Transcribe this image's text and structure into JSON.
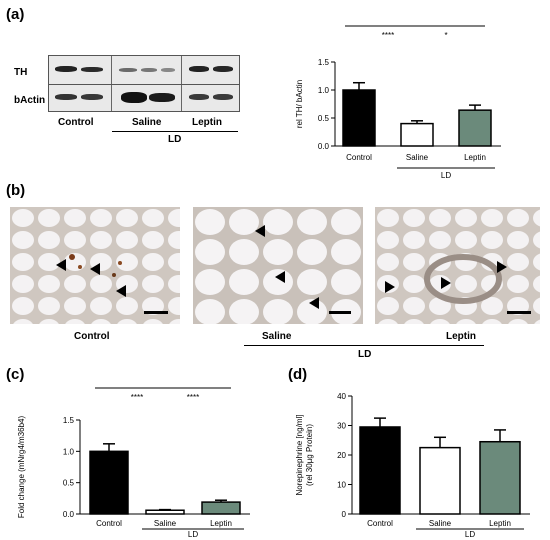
{
  "panels": {
    "a": "(a)",
    "b": "(b)",
    "c": "(c)",
    "d": "(d)"
  },
  "blot": {
    "rows": [
      "TH",
      "bActin"
    ],
    "columns": [
      "Control",
      "Saline",
      "Leptin"
    ],
    "group_label": "LD"
  },
  "micrographs": {
    "labels": [
      "Control",
      "Saline",
      "Leptin"
    ],
    "group_label": "LD"
  },
  "chart_data": [
    {
      "id": "a",
      "type": "bar",
      "categories": [
        "Control",
        "Saline",
        "Leptin"
      ],
      "values": [
        1.0,
        0.4,
        0.64
      ],
      "errors": [
        0.13,
        0.05,
        0.09
      ],
      "ylabel": "rel TH/ bActin",
      "ylim": [
        0,
        1.5
      ],
      "yticks": [
        "0.0",
        "0.5",
        "1.0",
        "1.5"
      ],
      "group_label": "LD",
      "bar_colors": [
        "#000000",
        "#ffffff",
        "#6b8a7b"
      ],
      "significance": [
        {
          "from": 0,
          "to": 1,
          "label": "****"
        },
        {
          "from": 1,
          "to": 2,
          "label": "*"
        }
      ]
    },
    {
      "id": "c",
      "type": "bar",
      "categories": [
        "Control",
        "Saline",
        "Leptin"
      ],
      "values": [
        1.0,
        0.06,
        0.19
      ],
      "errors": [
        0.12,
        0.01,
        0.03
      ],
      "ylabel": "Fold change (mNrg4/m36b4)",
      "ylim": [
        0,
        1.5
      ],
      "yticks": [
        "0.0",
        "0.5",
        "1.0",
        "1.5"
      ],
      "group_label": "LD",
      "bar_colors": [
        "#000000",
        "#ffffff",
        "#6b8a7b"
      ],
      "significance": [
        {
          "from": 0,
          "to": 1,
          "label": "****"
        },
        {
          "from": 1,
          "to": 2,
          "label": "****"
        }
      ]
    },
    {
      "id": "d",
      "type": "bar",
      "categories": [
        "Control",
        "Saline",
        "Leptin"
      ],
      "values": [
        29.5,
        22.5,
        24.5
      ],
      "errors": [
        3.0,
        3.5,
        4.0
      ],
      "ylabel": "Norepinephrine [ng/ml] (rel 30µg Protein)",
      "ylim": [
        0,
        40
      ],
      "yticks": [
        "0",
        "10",
        "20",
        "30",
        "40"
      ],
      "group_label": "LD",
      "bar_colors": [
        "#000000",
        "#ffffff",
        "#6b8a7b"
      ],
      "significance": []
    }
  ]
}
